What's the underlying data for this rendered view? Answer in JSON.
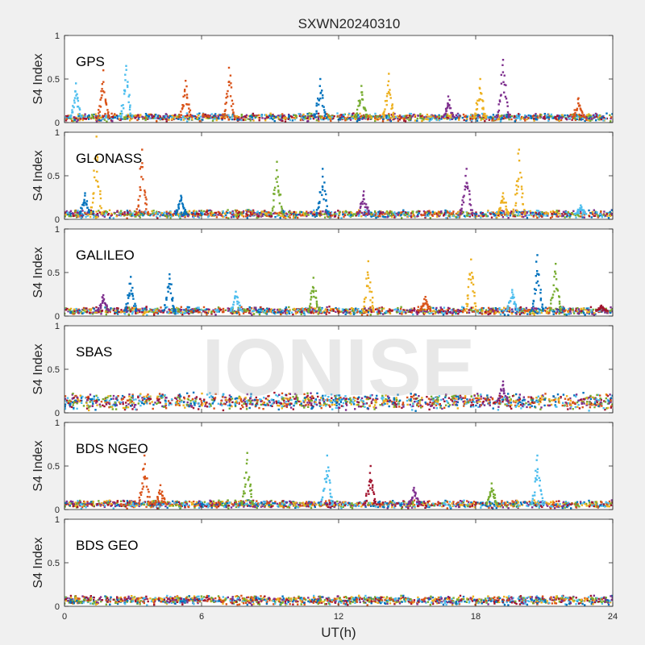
{
  "title": "SXWN20240310",
  "xlabel": "UT(h)",
  "watermark": "IONISE",
  "colors": [
    "#0072BD",
    "#D95319",
    "#EDB120",
    "#7E2F8E",
    "#77AC30",
    "#4DBEEE",
    "#A2142F"
  ],
  "chart_data": [
    {
      "type": "scatter",
      "panel_label": "GPS",
      "ylabel": "S4 Index",
      "xlim": [
        0,
        24
      ],
      "ylim": [
        0,
        1
      ],
      "xticks": [
        0,
        6,
        12,
        18,
        24
      ],
      "yticks": [
        0,
        0.5,
        1
      ],
      "baseline": 0.06,
      "spikes": [
        {
          "x": 0.5,
          "peak": 0.45,
          "color": 5
        },
        {
          "x": 1.7,
          "peak": 0.6,
          "color": 1
        },
        {
          "x": 2.7,
          "peak": 0.65,
          "color": 5
        },
        {
          "x": 5.3,
          "peak": 0.48,
          "color": 1
        },
        {
          "x": 7.2,
          "peak": 0.63,
          "color": 1
        },
        {
          "x": 11.2,
          "peak": 0.5,
          "color": 0
        },
        {
          "x": 13.0,
          "peak": 0.42,
          "color": 4
        },
        {
          "x": 14.2,
          "peak": 0.56,
          "color": 2
        },
        {
          "x": 16.8,
          "peak": 0.3,
          "color": 3
        },
        {
          "x": 18.2,
          "peak": 0.5,
          "color": 2
        },
        {
          "x": 19.2,
          "peak": 0.72,
          "color": 3
        },
        {
          "x": 22.5,
          "peak": 0.28,
          "color": 1
        }
      ]
    },
    {
      "type": "scatter",
      "panel_label": "GLONASS",
      "ylabel": "S4 Index",
      "xlim": [
        0,
        24
      ],
      "ylim": [
        0,
        1
      ],
      "xticks": [
        0,
        6,
        12,
        18,
        24
      ],
      "yticks": [
        0,
        0.5,
        1
      ],
      "baseline": 0.06,
      "spikes": [
        {
          "x": 0.9,
          "peak": 0.3,
          "color": 0
        },
        {
          "x": 1.4,
          "peak": 0.95,
          "color": 2
        },
        {
          "x": 3.4,
          "peak": 0.8,
          "color": 1
        },
        {
          "x": 5.1,
          "peak": 0.27,
          "color": 0
        },
        {
          "x": 9.3,
          "peak": 0.66,
          "color": 4
        },
        {
          "x": 11.3,
          "peak": 0.58,
          "color": 0
        },
        {
          "x": 13.1,
          "peak": 0.32,
          "color": 3
        },
        {
          "x": 17.6,
          "peak": 0.58,
          "color": 3
        },
        {
          "x": 19.2,
          "peak": 0.3,
          "color": 2
        },
        {
          "x": 19.9,
          "peak": 0.8,
          "color": 2
        },
        {
          "x": 22.6,
          "peak": 0.16,
          "color": 5
        }
      ]
    },
    {
      "type": "scatter",
      "panel_label": "GALILEO",
      "ylabel": "S4 Index",
      "xlim": [
        0,
        24
      ],
      "ylim": [
        0,
        1
      ],
      "xticks": [
        0,
        6,
        12,
        18,
        24
      ],
      "yticks": [
        0,
        0.5,
        1
      ],
      "baseline": 0.06,
      "spikes": [
        {
          "x": 1.7,
          "peak": 0.24,
          "color": 3
        },
        {
          "x": 2.9,
          "peak": 0.45,
          "color": 0
        },
        {
          "x": 4.6,
          "peak": 0.48,
          "color": 0
        },
        {
          "x": 7.5,
          "peak": 0.28,
          "color": 5
        },
        {
          "x": 10.9,
          "peak": 0.44,
          "color": 4
        },
        {
          "x": 13.3,
          "peak": 0.63,
          "color": 2
        },
        {
          "x": 15.8,
          "peak": 0.22,
          "color": 1
        },
        {
          "x": 17.8,
          "peak": 0.65,
          "color": 2
        },
        {
          "x": 19.6,
          "peak": 0.3,
          "color": 5
        },
        {
          "x": 20.7,
          "peak": 0.7,
          "color": 0
        },
        {
          "x": 21.5,
          "peak": 0.6,
          "color": 4
        },
        {
          "x": 23.5,
          "peak": 0.12,
          "color": 6
        }
      ]
    },
    {
      "type": "scatter",
      "panel_label": "SBAS",
      "ylabel": "S4 Index",
      "xlim": [
        0,
        24
      ],
      "ylim": [
        0,
        1
      ],
      "xticks": [
        0,
        6,
        12,
        18,
        24
      ],
      "yticks": [
        0,
        0.5,
        1
      ],
      "baseline": 0.13,
      "spikes": [
        {
          "x": 19.2,
          "peak": 0.36,
          "color": 3
        }
      ]
    },
    {
      "type": "scatter",
      "panel_label": "BDS NGEO",
      "ylabel": "S4 Index",
      "xlim": [
        0,
        24
      ],
      "ylim": [
        0,
        1
      ],
      "xticks": [
        0,
        6,
        12,
        18,
        24
      ],
      "yticks": [
        0,
        0.5,
        1
      ],
      "baseline": 0.06,
      "spikes": [
        {
          "x": 3.5,
          "peak": 0.62,
          "color": 1
        },
        {
          "x": 4.2,
          "peak": 0.28,
          "color": 1
        },
        {
          "x": 8.0,
          "peak": 0.65,
          "color": 4
        },
        {
          "x": 11.5,
          "peak": 0.62,
          "color": 5
        },
        {
          "x": 13.4,
          "peak": 0.5,
          "color": 6
        },
        {
          "x": 15.3,
          "peak": 0.25,
          "color": 3
        },
        {
          "x": 18.7,
          "peak": 0.3,
          "color": 4
        },
        {
          "x": 20.7,
          "peak": 0.62,
          "color": 5
        }
      ]
    },
    {
      "type": "scatter",
      "panel_label": "BDS GEO",
      "ylabel": "S4 Index",
      "xlim": [
        0,
        24
      ],
      "ylim": [
        0,
        1
      ],
      "xticks": [
        0,
        6,
        12,
        18,
        24
      ],
      "yticks": [
        0,
        0.5,
        1
      ],
      "baseline": 0.07,
      "spikes": []
    }
  ]
}
